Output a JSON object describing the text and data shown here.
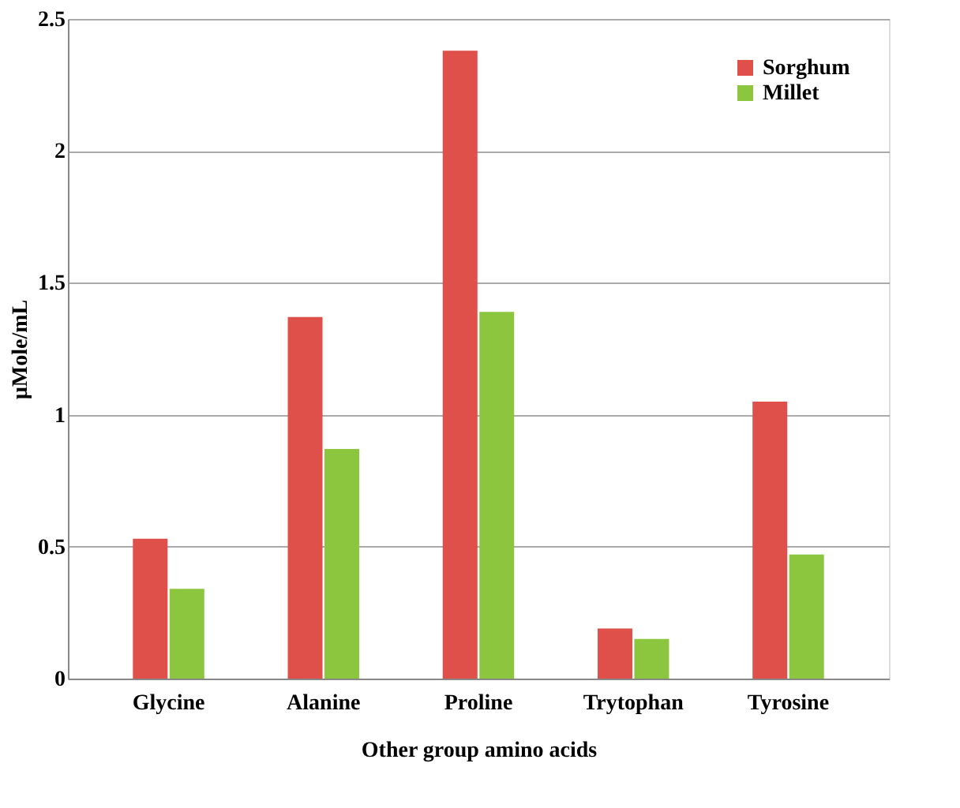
{
  "chart_data": {
    "type": "bar",
    "xlabel": "Other group amino acids",
    "ylabel": "µMole/mL",
    "categories": [
      "Glycine",
      "Alanine",
      "Proline",
      "Trytophan",
      "Tyrosine"
    ],
    "series": [
      {
        "name": "Sorghum",
        "color": "#e0504a",
        "values": [
          0.53,
          1.37,
          2.38,
          0.19,
          1.05
        ]
      },
      {
        "name": "Millet",
        "color": "#8cc63f",
        "values": [
          0.34,
          0.87,
          1.39,
          0.15,
          0.47
        ]
      }
    ],
    "ylim": [
      0,
      2.5
    ],
    "yticks": [
      0,
      0.5,
      1,
      1.5,
      2,
      2.5
    ],
    "grid": "y",
    "legend": "top right"
  }
}
